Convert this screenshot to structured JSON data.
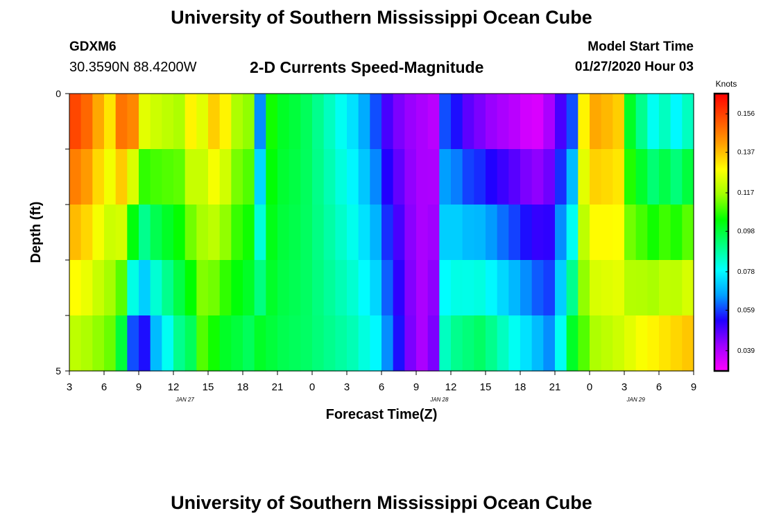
{
  "header": {
    "title": "University of Southern Mississippi Ocean Cube",
    "station_id": "GDXM6",
    "coordinates": "30.3590N 88.4200W",
    "subtitle": "2-D Currents Speed-Magnitude",
    "model_start_label": "Model Start Time",
    "model_start_value": "01/27/2020 Hour 03"
  },
  "footer": {
    "title": "University of Southern Mississippi Ocean Cube"
  },
  "chart_data": {
    "type": "heatmap",
    "title": "2-D Currents Speed-Magnitude",
    "xlabel": "Forecast Time(Z)",
    "ylabel": "Depth (ft)",
    "x_tick_labels": [
      "3",
      "6",
      "9",
      "12",
      "15",
      "18",
      "21",
      "0",
      "3",
      "6",
      "9",
      "12",
      "15",
      "18",
      "21",
      "0",
      "3",
      "6",
      "9"
    ],
    "x_date_labels": [
      {
        "label": "JAN  27",
        "hour_index": 10
      },
      {
        "label": "JAN  28",
        "hour_index": 32
      },
      {
        "label": "JAN  29",
        "hour_index": 49
      }
    ],
    "y_tick_labels": [
      "0",
      "5"
    ],
    "ylim": [
      0,
      5
    ],
    "y_minor_ticks": 4,
    "hours": 54,
    "depth_rows": 5,
    "colorbar": {
      "unit": "Knots",
      "min": 0.029,
      "max": 0.166,
      "tick_labels": [
        "0.156",
        "0.137",
        "0.117",
        "0.098",
        "0.078",
        "0.059",
        "0.039"
      ],
      "tick_values": [
        0.156,
        0.137,
        0.117,
        0.098,
        0.078,
        0.059,
        0.039
      ],
      "colors": [
        "#ff00ff",
        "#a000ff",
        "#2000ff",
        "#00a0ff",
        "#00ffff",
        "#00ff80",
        "#00ff00",
        "#a0ff00",
        "#ffff00",
        "#ffa000",
        "#ff5000",
        "#ff0000"
      ]
    },
    "speed_profile_knots": {
      "description": "approximate speed by forecast hour (rows from surface to 5 ft)",
      "surface": [
        0.155,
        0.15,
        0.14,
        0.132,
        0.148,
        0.145,
        0.125,
        0.122,
        0.12,
        0.118,
        0.13,
        0.125,
        0.135,
        0.13,
        0.118,
        0.115,
        0.065,
        0.105,
        0.1,
        0.098,
        0.095,
        0.09,
        0.085,
        0.08,
        0.075,
        0.068,
        0.06,
        0.05,
        0.045,
        0.042,
        0.04,
        0.038,
        0.06,
        0.055,
        0.048,
        0.045,
        0.042,
        0.04,
        0.038,
        0.035,
        0.034,
        0.04,
        0.05,
        0.06,
        0.13,
        0.14,
        0.138,
        0.135,
        0.1,
        0.09,
        0.08,
        0.085,
        0.078,
        0.085
      ],
      "bottom": [
        0.12,
        0.118,
        0.115,
        0.112,
        0.098,
        0.06,
        0.055,
        0.07,
        0.08,
        0.09,
        0.095,
        0.11,
        0.105,
        0.1,
        0.098,
        0.095,
        0.1,
        0.098,
        0.096,
        0.095,
        0.094,
        0.092,
        0.09,
        0.088,
        0.086,
        0.082,
        0.078,
        0.065,
        0.055,
        0.045,
        0.04,
        0.045,
        0.085,
        0.09,
        0.092,
        0.094,
        0.09,
        0.085,
        0.08,
        0.075,
        0.07,
        0.065,
        0.08,
        0.1,
        0.11,
        0.118,
        0.12,
        0.122,
        0.125,
        0.128,
        0.13,
        0.132,
        0.134,
        0.136
      ]
    }
  }
}
